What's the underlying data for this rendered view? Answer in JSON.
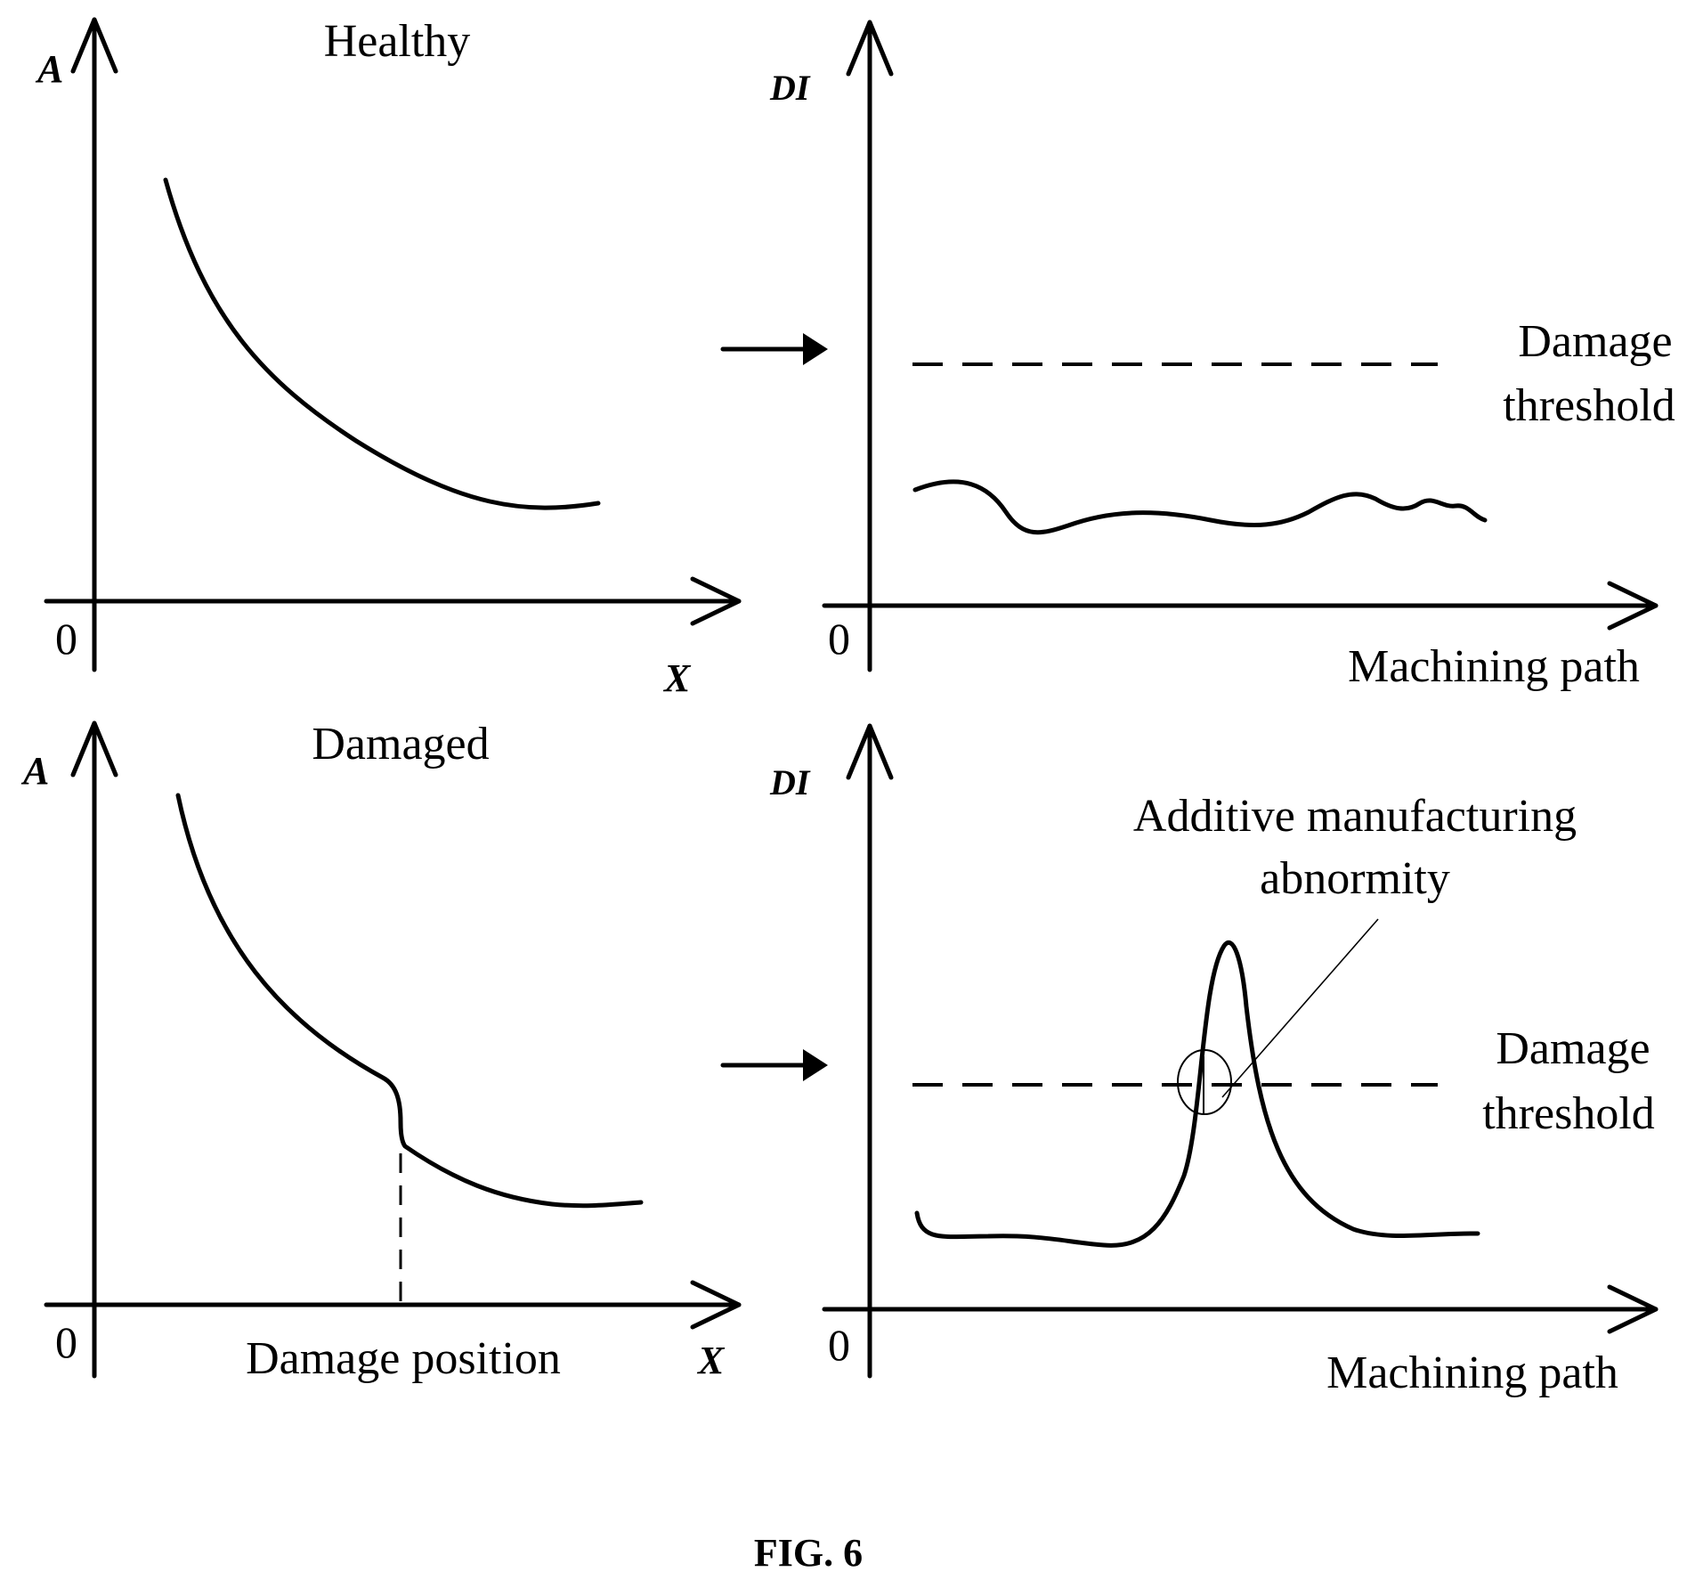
{
  "figure_label": "FIG. 6",
  "panels": {
    "healthy_signal": {
      "title": "Healthy",
      "y_axis_label": "A",
      "x_axis_label": "X",
      "origin_label": "0"
    },
    "healthy_index": {
      "y_axis_label": "DI",
      "x_axis_label": "Machining path",
      "origin_label": "0",
      "threshold_label_line1": "Damage",
      "threshold_label_line2": "threshold"
    },
    "damaged_signal": {
      "title": "Damaged",
      "y_axis_label": "A",
      "x_axis_label": "X",
      "origin_label": "0",
      "marker_label": "Damage position"
    },
    "damaged_index": {
      "y_axis_label": "DI",
      "x_axis_label": "Machining path",
      "origin_label": "0",
      "threshold_label_line1": "Damage",
      "threshold_label_line2": "threshold",
      "annotation_line1": "Additive manufacturing",
      "annotation_line2": "abnormity"
    }
  },
  "colors": {
    "ink": "#000000",
    "background": "#ffffff"
  }
}
